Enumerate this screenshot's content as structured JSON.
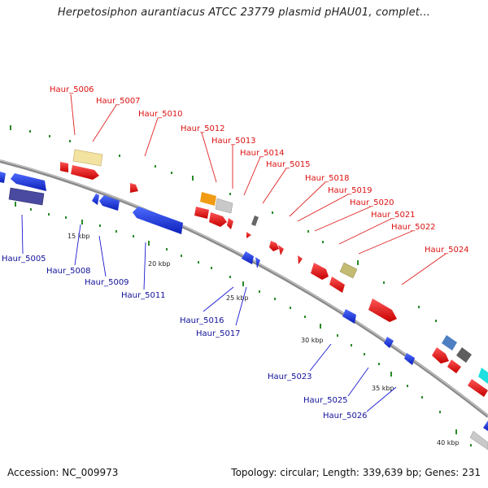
{
  "header": {
    "title": "Herpetosiphon aurantiacus ATCC 23779 plasmid pHAU01, complet..."
  },
  "footer": {
    "accession": "Accession: NC_009973",
    "summary": "Topology: circular; Length: 339,639 bp; Genes: 231"
  },
  "colors": {
    "forward_gene": "#ee1111",
    "reverse_gene": "#1133dd",
    "forward_label": "#dd1111",
    "reverse_label": "#111199",
    "backbone": "#888888",
    "tick_mark": "#2a8a2a"
  },
  "scale_ticks": [
    "15 kbp",
    "20 kbp",
    "25 kbp",
    "30 kbp",
    "35 kbp",
    "40 kbp"
  ],
  "forward_labels": [
    "Haur_5006",
    "Haur_5007",
    "Haur_5010",
    "Haur_5012",
    "Haur_5013",
    "Haur_5014",
    "Haur_5015",
    "Haur_5018",
    "Haur_5019",
    "Haur_5020",
    "Haur_5021",
    "Haur_5022",
    "Haur_5024"
  ],
  "reverse_labels": [
    "Haur_5005",
    "Haur_5008",
    "Haur_5009",
    "Haur_5011",
    "Haur_5016",
    "Haur_5017",
    "Haur_5023",
    "Haur_5025",
    "Haur_5026"
  ]
}
